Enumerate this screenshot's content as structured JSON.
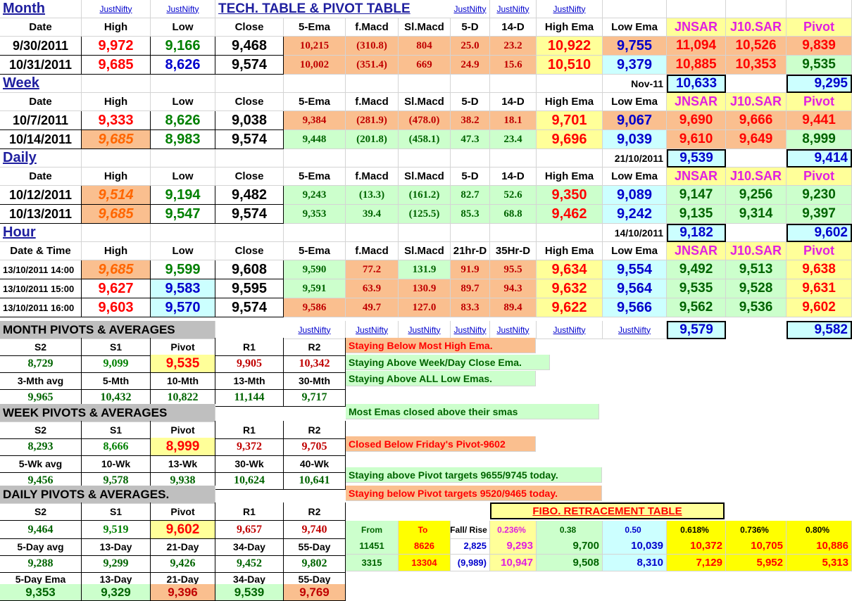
{
  "title": "TECH. TABLE  &  PIVOT TABLE",
  "link": "JustNifty",
  "month": {
    "label": "Month",
    "headers": [
      "Date",
      "High",
      "Low",
      "Close",
      "5-Ema",
      "f.Macd",
      "Sl.Macd",
      "5-D",
      "14-D",
      "High Ema",
      "Low Ema",
      "JNSAR",
      "J10.SAR",
      "Pivot"
    ],
    "rows": [
      [
        "9/30/2011",
        "9,972",
        "9,166",
        "9,468",
        "10,215",
        "(310.8)",
        "804",
        "25.0",
        "23.2",
        "10,922",
        "9,755",
        "11,094",
        "10,526",
        "9,839"
      ],
      [
        "10/31/2011",
        "9,685",
        "8,626",
        "9,574",
        "10,002",
        "(351.4)",
        "669",
        "24.9",
        "15.6",
        "10,510",
        "9,379",
        "10,885",
        "10,353",
        "9,535"
      ]
    ],
    "extra_label": "Nov-11",
    "extra_jnsar": "10,633",
    "extra_pivot": "9,295"
  },
  "week": {
    "label": "Week",
    "headers": [
      "Date",
      "High",
      "Low",
      "Close",
      "5-Ema",
      "f.Macd",
      "Sl.Macd",
      "5-D",
      "14-D",
      "High Ema",
      "Low Ema",
      "JNSAR",
      "J10.SAR",
      "Pivot"
    ],
    "rows": [
      [
        "10/7/2011",
        "9,333",
        "8,626",
        "9,038",
        "9,384",
        "(281.9)",
        "(478.0)",
        "38.2",
        "18.1",
        "9,701",
        "9,067",
        "9,690",
        "9,666",
        "9,441"
      ],
      [
        "10/14/2011",
        "9,685",
        "8,983",
        "9,574",
        "9,448",
        "(201.8)",
        "(458.1)",
        "47.3",
        "23.4",
        "9,696",
        "9,039",
        "9,610",
        "9,649",
        "8,999"
      ]
    ],
    "extra_label": "21/10/2011",
    "extra_jnsar": "9,539",
    "extra_pivot": "9,414"
  },
  "daily": {
    "label": "Daily",
    "headers": [
      "Date",
      "High",
      "Low",
      "Close",
      "5-Ema",
      "f.Macd",
      "Sl.Macd",
      "5-D",
      "14-D",
      "High Ema",
      "Low Ema",
      "JNSAR",
      "J10.SAR",
      "Pivot"
    ],
    "rows": [
      [
        "10/12/2011",
        "9,514",
        "9,194",
        "9,482",
        "9,243",
        "(13.3)",
        "(161.2)",
        "82.7",
        "52.6",
        "9,350",
        "9,089",
        "9,147",
        "9,256",
        "9,230"
      ],
      [
        "10/13/2011",
        "9,685",
        "9,547",
        "9,574",
        "9,353",
        "39.4",
        "(125.5)",
        "85.3",
        "68.8",
        "9,462",
        "9,242",
        "9,135",
        "9,314",
        "9,397"
      ]
    ],
    "extra_label": "14/10/2011",
    "extra_jnsar": "9,182",
    "extra_pivot": "9,602"
  },
  "hour": {
    "label": "Hour",
    "headers": [
      "Date & Time",
      "High",
      "Low",
      "Close",
      "5-Ema",
      "f.Macd",
      "Sl.Macd",
      "21hr-D",
      "35Hr-D",
      "High Ema",
      "Low Ema",
      "JNSAR",
      "J10.SAR",
      "Pivot"
    ],
    "rows": [
      [
        "13/10/2011 14:00",
        "9,685",
        "9,599",
        "9,608",
        "9,590",
        "77.2",
        "131.9",
        "91.9",
        "95.5",
        "9,634",
        "9,554",
        "9,492",
        "9,513",
        "9,638"
      ],
      [
        "13/10/2011 15:00",
        "9,627",
        "9,583",
        "9,595",
        "9,591",
        "63.9",
        "130.9",
        "89.7",
        "94.3",
        "9,632",
        "9,564",
        "9,535",
        "9,528",
        "9,631"
      ],
      [
        "13/10/2011 16:00",
        "9,603",
        "9,570",
        "9,574",
        "9,586",
        "49.7",
        "127.0",
        "83.3",
        "89.4",
        "9,622",
        "9,566",
        "9,562",
        "9,536",
        "9,602"
      ]
    ],
    "extra_jnsar": "9,579",
    "extra_pivot": "9,582"
  },
  "month_pivots": {
    "title": "MONTH  PIVOTS  &  AVERAGES",
    "headers": [
      "S2",
      "S1",
      "Pivot",
      "R1",
      "R2"
    ],
    "values": [
      "8,729",
      "9,099",
      "9,535",
      "9,905",
      "10,342"
    ],
    "avg_headers": [
      "3-Mth avg",
      "5-Mth",
      "10-Mth",
      "13-Mth",
      "30-Mth"
    ],
    "avg_values": [
      "9,965",
      "10,432",
      "10,822",
      "11,144",
      "9,717"
    ]
  },
  "week_pivots": {
    "title": "WEEK  PIVOTS  &  AVERAGES",
    "headers": [
      "S2",
      "S1",
      "Pivot",
      "R1",
      "R2"
    ],
    "values": [
      "8,293",
      "8,666",
      "8,999",
      "9,372",
      "9,705"
    ],
    "avg_headers": [
      "5-Wk avg",
      "10-Wk",
      "13-Wk",
      "30-Wk",
      "40-Wk"
    ],
    "avg_values": [
      "9,456",
      "9,578",
      "9,938",
      "10,624",
      "10,641"
    ]
  },
  "daily_pivots": {
    "title": "DAILY  PIVOTS  &  AVERAGES.",
    "headers": [
      "S2",
      "S1",
      "Pivot",
      "R1",
      "R2"
    ],
    "values": [
      "9,464",
      "9,519",
      "9,602",
      "9,657",
      "9,740"
    ],
    "avg_headers": [
      "5-Day avg",
      "13-Day",
      "21-Day",
      "34-Day",
      "55-Day"
    ],
    "avg_values": [
      "9,288",
      "9,299",
      "9,426",
      "9,452",
      "9,802"
    ],
    "ema_headers": [
      "5-Day Ema",
      "13-Day",
      "21-Day",
      "34-Day",
      "55-Day"
    ],
    "ema_values": [
      "9,353",
      "9,329",
      "9,396",
      "9,539",
      "9,769"
    ]
  },
  "notes": [
    "Staying Below Most High Ema.",
    "Staying Above Week/Day Close Ema.",
    "Staying Above ALL Low Emas.",
    "Most Emas closed above their smas",
    "Closed Below Friday's Pivot-9602",
    "Staying above Pivot targets 9655/9745 today.",
    "Staying below Pivot targets 9520/9465 today."
  ],
  "fibo": {
    "title": "FIBO. RETRACEMENT TABLE",
    "headers": [
      "From",
      "To",
      "Fall/ Rise",
      "0.236%",
      "0.38",
      "0.50",
      "0.618%",
      "0.736%",
      "0.80%"
    ],
    "rows": [
      [
        "11451",
        "8626",
        "2,825",
        "9,293",
        "9,700",
        "10,039",
        "10,372",
        "10,705",
        "10,886"
      ],
      [
        "3315",
        "13304",
        "(9,989)",
        "10,947",
        "9,508",
        "8,310",
        "7,129",
        "5,952",
        "5,313"
      ]
    ]
  }
}
